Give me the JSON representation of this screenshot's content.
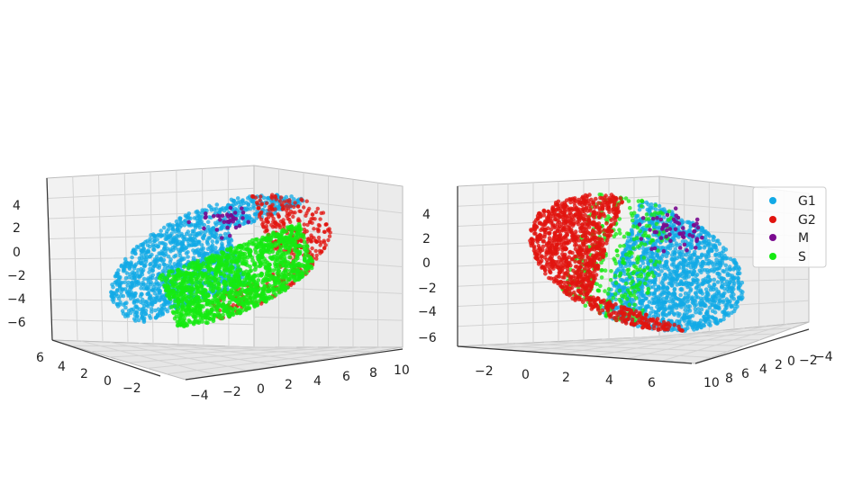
{
  "chart_data": [
    {
      "type": "scatter",
      "projection": "3d",
      "title": "",
      "series": [
        {
          "name": "G1",
          "color": "#12a9e6"
        },
        {
          "name": "G2",
          "color": "#e1140f"
        },
        {
          "name": "M",
          "color": "#7a0a8f"
        },
        {
          "name": "S",
          "color": "#15ea11"
        }
      ],
      "axes": {
        "x": {
          "ticks": [
            "−4",
            "−2",
            "0",
            "2",
            "4",
            "6",
            "8",
            "10"
          ],
          "range": [
            -4,
            10
          ]
        },
        "y": {
          "ticks": [
            "6",
            "4",
            "2",
            "0",
            "−2"
          ],
          "range": [
            -3,
            7
          ]
        },
        "z": {
          "ticks": [
            "4",
            "2",
            "0",
            "−2",
            "−4",
            "−6"
          ],
          "range": [
            -7,
            5
          ]
        }
      },
      "grid": true,
      "legend": "none"
    },
    {
      "type": "scatter",
      "projection": "3d",
      "title": "",
      "series": [
        {
          "name": "G1",
          "color": "#12a9e6"
        },
        {
          "name": "G2",
          "color": "#e1140f"
        },
        {
          "name": "M",
          "color": "#7a0a8f"
        },
        {
          "name": "S",
          "color": "#15ea11"
        }
      ],
      "axes": {
        "x": {
          "ticks": [
            "−2",
            "0",
            "2",
            "4",
            "6"
          ],
          "range": [
            -3,
            7
          ]
        },
        "y": {
          "ticks": [
            "10",
            "8",
            "6",
            "4",
            "2",
            "0",
            "−2",
            "−4"
          ],
          "range": [
            -4,
            10
          ]
        },
        "z": {
          "ticks": [
            "4",
            "2",
            "0",
            "−2",
            "−4",
            "−6"
          ],
          "range": [
            -7,
            5
          ]
        }
      },
      "grid": true,
      "legend": "top-right"
    }
  ],
  "legend": {
    "items": [
      {
        "label": "G1",
        "color": "#12a9e6"
      },
      {
        "label": "G2",
        "color": "#e1140f"
      },
      {
        "label": "M",
        "color": "#7a0a8f"
      },
      {
        "label": "S",
        "color": "#15ea11"
      }
    ]
  }
}
